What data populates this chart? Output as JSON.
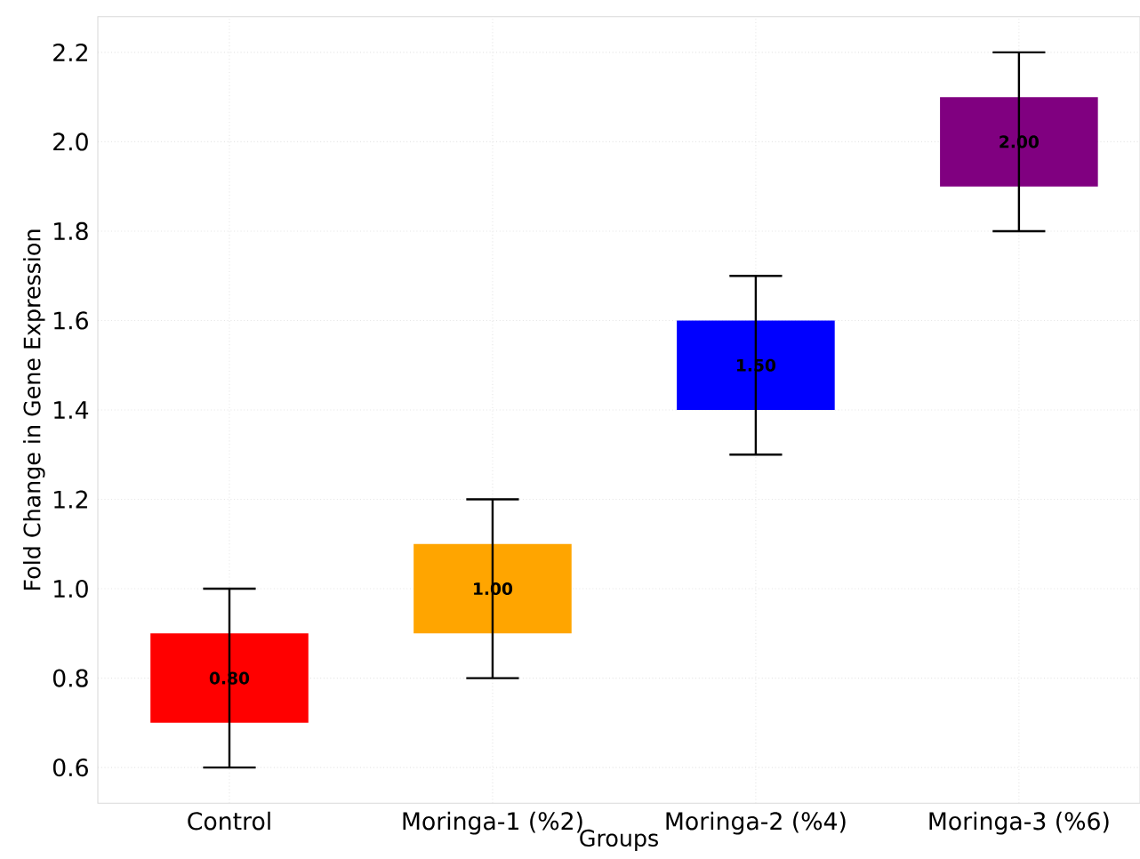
{
  "chart_data": {
    "type": "bar",
    "xlabel": "Groups",
    "ylabel": "Fold Change in Gene Expression",
    "categories": [
      "Control",
      "Moringa-1 (%2)",
      "Moringa-2 (%4)",
      "Moringa-3 (%6)"
    ],
    "base": [
      0.7,
      0.9,
      1.4,
      1.9
    ],
    "values": [
      0.2,
      0.2,
      0.2,
      0.2
    ],
    "colors": [
      "#ff0000",
      "#ffa500",
      "#0000ff",
      "#800080"
    ],
    "errors": [
      [
        0.6,
        1.0
      ],
      [
        0.8,
        1.2
      ],
      [
        1.3,
        1.7
      ],
      [
        1.8,
        2.2
      ]
    ],
    "annotations": [
      {
        "text": "0.80",
        "x": "Control",
        "y": 0.8
      },
      {
        "text": "1.00",
        "x": "Moringa-1 (%2)",
        "y": 1.0
      },
      {
        "text": "1.50",
        "x": "Moringa-2 (%4)",
        "y": 1.5
      },
      {
        "text": "2.00",
        "x": "Moringa-3 (%6)",
        "y": 2.0
      }
    ],
    "ylim": [
      0.52,
      2.28
    ],
    "yticks": [
      0.6,
      0.8,
      {
        "value": 1.0,
        "label": "1.0"
      },
      1.2,
      1.4,
      1.6,
      1.8,
      {
        "value": 2.0,
        "label": "2.0"
      },
      2.2
    ],
    "grid": true
  }
}
